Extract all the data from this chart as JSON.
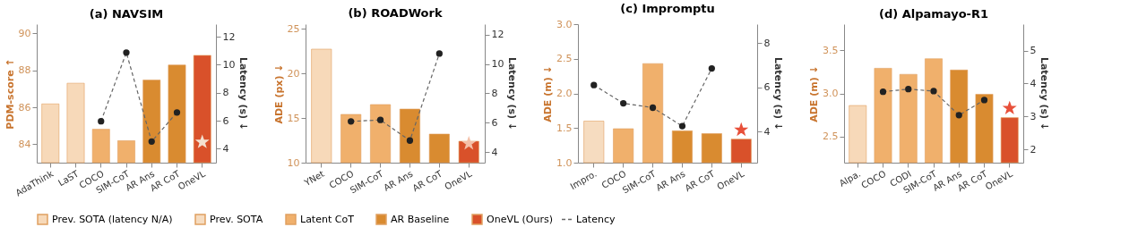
{
  "chart_data": [
    {
      "type": "bar",
      "title": "(a) NAVSIM",
      "ylabel": "PDM-score ↑",
      "y2label": "Latency (s) ↓",
      "categories": [
        "AdaThink",
        "LaST",
        "COCO",
        "SIM-CoT",
        "AR Ans",
        "AR CoT",
        "OneVL"
      ],
      "ylim": [
        83,
        90.5
      ],
      "yticks": [
        84,
        86,
        88,
        90
      ],
      "y2lim": [
        3,
        12.9
      ],
      "y2ticks": [
        4,
        6,
        8,
        10,
        12
      ],
      "grid": false,
      "legend": "bottom",
      "series": [
        {
          "name": "Prev. SOTA (latency N/A)",
          "color": "#f7d9b9",
          "values": [
            86.18,
            87.3,
            null,
            null,
            null,
            null,
            null
          ]
        },
        {
          "name": "Latent CoT",
          "color": "#f0b06c",
          "values": [
            null,
            null,
            84.81,
            84.19,
            null,
            null,
            null
          ]
        },
        {
          "name": "AR Baseline",
          "color": "#d98b30",
          "values": [
            null,
            null,
            null,
            null,
            87.47,
            88.29,
            null
          ]
        },
        {
          "name": "OneVL (Ours)",
          "color": "#d9512a",
          "values": [
            null,
            null,
            null,
            null,
            null,
            null,
            88.81
          ]
        },
        {
          "name": "Latency",
          "type": "line",
          "axis": "y2",
          "color": "#666666",
          "line_style": "dashed",
          "marker": "circle",
          "values": [
            null,
            null,
            5.96,
            10.87,
            4.51,
            6.59,
            null
          ]
        },
        {
          "type": "scatter",
          "axis": "y2",
          "color": "#f4e0d0",
          "marker": "star",
          "values": [
            null,
            null,
            null,
            null,
            null,
            null,
            4.47
          ]
        }
      ]
    },
    {
      "type": "bar",
      "title": "(b) ROADWork",
      "ylabel": "ADE (px) ↓",
      "y2label": "Latency (s) ↓",
      "categories": [
        "YNet",
        "COCO",
        "SIM-CoT",
        "AR Ans",
        "AR CoT",
        "OneVL"
      ],
      "ylim": [
        10,
        25.5
      ],
      "yticks": [
        10,
        15,
        20,
        25
      ],
      "y2lim": [
        3.3,
        12.7
      ],
      "y2ticks": [
        4,
        6,
        8,
        10,
        12
      ],
      "grid": false,
      "legend": "bottom",
      "series": [
        {
          "color": "#f7d9b9",
          "values": [
            22.7,
            null,
            null,
            null,
            null,
            null
          ]
        },
        {
          "color": "#f0b06c",
          "values": [
            null,
            15.4,
            16.5,
            null,
            null,
            null
          ]
        },
        {
          "color": "#d98b30",
          "values": [
            null,
            null,
            null,
            16.0,
            13.2,
            null
          ]
        },
        {
          "color": "#d9512a",
          "values": [
            null,
            null,
            null,
            null,
            null,
            12.4
          ]
        },
        {
          "type": "line",
          "axis": "y2",
          "color": "#666666",
          "line_style": "dashed",
          "marker": "circle",
          "values": [
            null,
            6.1,
            6.2,
            4.8,
            10.7,
            null
          ]
        },
        {
          "type": "scatter",
          "axis": "y2",
          "color": "#f4c0a8",
          "marker": "star",
          "values": [
            null,
            null,
            null,
            null,
            null,
            4.6
          ]
        }
      ]
    },
    {
      "type": "bar",
      "title": "(c) Impromptu",
      "ylabel": "ADE (m) ↓",
      "y2label": "Latency (s) ↓",
      "categories": [
        "Impro.",
        "COCO",
        "SIM-CoT",
        "AR Ans",
        "AR CoT",
        "OneVL"
      ],
      "ylim": [
        1.0,
        3.0
      ],
      "yticks": [
        {
          "value": 1,
          "label": "1.0"
        },
        1.5,
        {
          "value": 2,
          "label": "2.0"
        },
        2.5,
        {
          "value": 3,
          "label": "3.0"
        }
      ],
      "y2lim": [
        2.6,
        8.85
      ],
      "y2ticks": [
        4,
        6,
        8
      ],
      "grid": false,
      "legend": "bottom",
      "series": [
        {
          "name": "Prev. SOTA",
          "color": "#f6dcc0",
          "values": [
            1.6,
            null,
            null,
            null,
            null,
            null
          ]
        },
        {
          "color": "#f0b06c",
          "values": [
            null,
            1.49,
            2.43,
            null,
            null,
            null
          ]
        },
        {
          "color": "#d98b30",
          "values": [
            null,
            null,
            null,
            1.46,
            1.42,
            null
          ]
        },
        {
          "color": "#d9512a",
          "values": [
            null,
            null,
            null,
            null,
            null,
            1.34
          ]
        },
        {
          "type": "line",
          "axis": "y2",
          "color": "#666666",
          "line_style": "dashed",
          "marker": "circle",
          "values": [
            6.1,
            5.28,
            5.08,
            4.25,
            6.85,
            null
          ]
        },
        {
          "type": "scatter",
          "axis": "y2",
          "color": "#e8503a",
          "marker": "star",
          "values": [
            null,
            null,
            null,
            null,
            null,
            4.08
          ]
        }
      ]
    },
    {
      "type": "bar",
      "title": "(d) Alpamayo-R1",
      "ylabel": "ADE (m) ↓",
      "y2label": "Latency (s) ↓",
      "categories": [
        "Alpa.",
        "COCO",
        "CODI",
        "SIM-CoT",
        "AR Ans",
        "AR CoT",
        "OneVL"
      ],
      "ylim": [
        2.2,
        3.8
      ],
      "yticks": [
        2.5,
        {
          "value": 3,
          "label": "3.0"
        },
        3.5
      ],
      "y2lim": [
        1.6,
        5.8
      ],
      "y2ticks": [
        2,
        3,
        4,
        5
      ],
      "grid": false,
      "legend": "bottom",
      "series": [
        {
          "color": "#f7d9b9",
          "values": [
            2.86,
            null,
            null,
            null,
            null,
            null,
            null
          ]
        },
        {
          "color": "#f0b06c",
          "values": [
            null,
            3.29,
            3.22,
            3.4,
            null,
            null,
            null
          ]
        },
        {
          "color": "#d98b30",
          "values": [
            null,
            null,
            null,
            null,
            3.27,
            2.99,
            null
          ]
        },
        {
          "color": "#d9512a",
          "values": [
            null,
            null,
            null,
            null,
            null,
            null,
            2.72
          ]
        },
        {
          "type": "line",
          "axis": "y2",
          "color": "#666666",
          "line_style": "dashed",
          "marker": "circle",
          "values": [
            null,
            3.75,
            3.83,
            3.77,
            3.04,
            3.5,
            null
          ]
        },
        {
          "type": "scatter",
          "axis": "y2",
          "color": "#e8503a",
          "marker": "star",
          "values": [
            null,
            null,
            null,
            null,
            null,
            null,
            3.25
          ]
        }
      ]
    }
  ]
}
